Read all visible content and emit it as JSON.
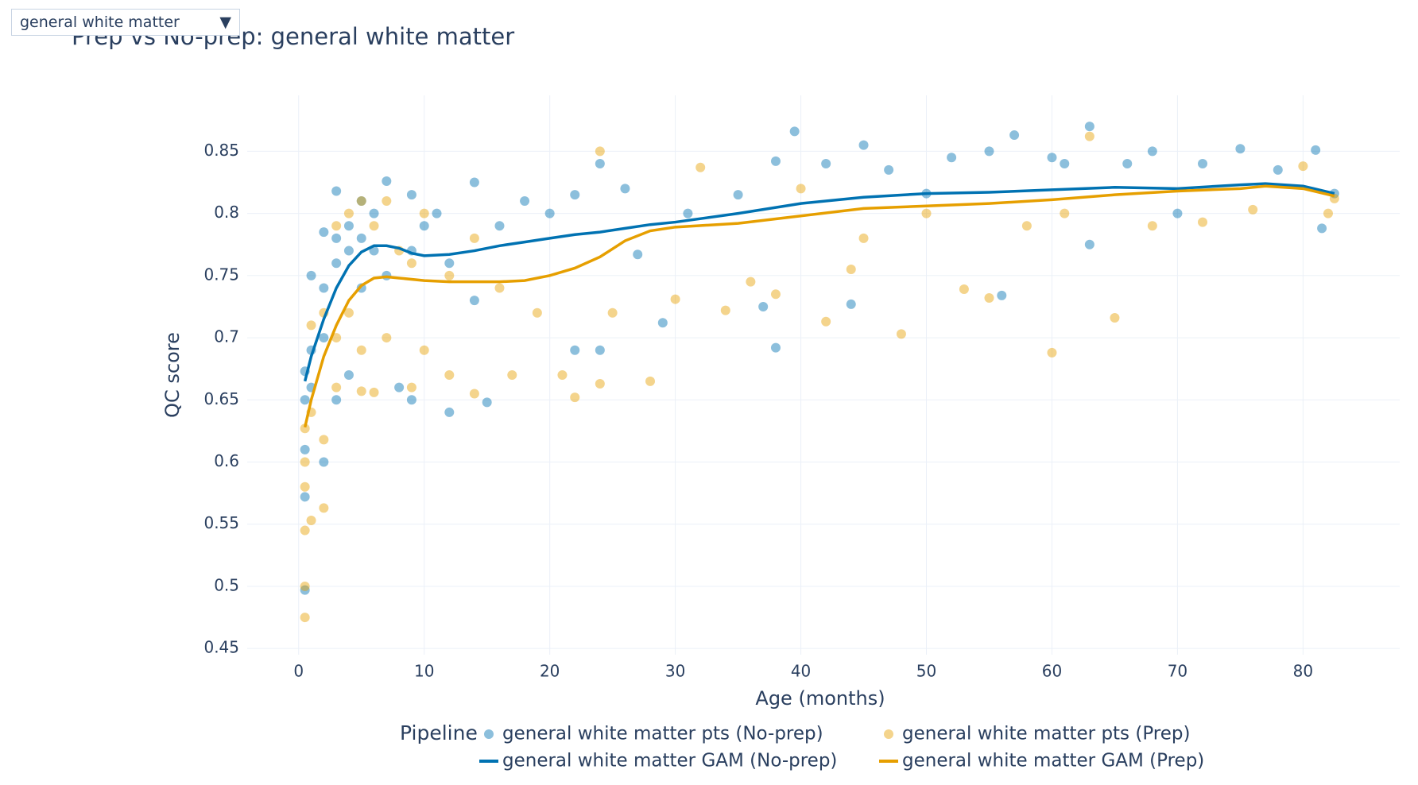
{
  "dropdown": {
    "selected": "general white matter",
    "arrow": "▼"
  },
  "chart_data": {
    "type": "scatter",
    "title": "Prep vs No-prep: general white matter",
    "x_label": "Age (months)",
    "y_label": "QC score",
    "xlim": [
      -4.1,
      87.7
    ],
    "ylim": [
      0.445,
      0.895
    ],
    "xticks": [
      0,
      10,
      20,
      30,
      40,
      50,
      60,
      70,
      80
    ],
    "yticks": [
      0.45,
      0.5,
      0.55,
      0.6,
      0.65,
      0.7,
      0.75,
      0.8,
      0.85
    ],
    "grid": true,
    "legend_title": "Pipeline",
    "series": [
      {
        "name": "general white matter pts (No-prep)",
        "color": "#0072b2",
        "mode": "markers",
        "x": [
          0.5,
          0.5,
          0.5,
          0.5,
          0.5,
          1,
          1,
          1,
          2,
          2,
          2,
          2,
          3,
          3,
          3,
          3,
          4,
          4,
          4,
          5,
          5,
          5,
          6,
          6,
          7,
          7,
          8,
          9,
          9,
          9,
          10,
          11,
          12,
          12,
          14,
          14,
          15,
          16,
          18,
          20,
          22,
          22,
          24,
          24,
          26,
          27,
          29,
          31,
          35,
          37,
          38,
          38,
          39.5,
          42,
          44,
          45,
          47,
          50,
          52,
          55,
          56,
          57,
          60,
          61,
          63,
          63,
          66,
          68,
          70,
          72,
          75,
          78,
          81,
          81.5,
          82.5
        ],
        "values": [
          0.673,
          0.65,
          0.61,
          0.572,
          0.497,
          0.69,
          0.66,
          0.75,
          0.785,
          0.74,
          0.7,
          0.6,
          0.818,
          0.78,
          0.76,
          0.65,
          0.79,
          0.77,
          0.67,
          0.81,
          0.78,
          0.74,
          0.8,
          0.77,
          0.826,
          0.75,
          0.66,
          0.815,
          0.77,
          0.65,
          0.79,
          0.8,
          0.76,
          0.64,
          0.825,
          0.73,
          0.648,
          0.79,
          0.81,
          0.8,
          0.815,
          0.69,
          0.84,
          0.69,
          0.82,
          0.767,
          0.712,
          0.8,
          0.815,
          0.725,
          0.692,
          0.842,
          0.866,
          0.84,
          0.727,
          0.855,
          0.835,
          0.816,
          0.845,
          0.85,
          0.734,
          0.863,
          0.845,
          0.84,
          0.87,
          0.775,
          0.84,
          0.85,
          0.8,
          0.84,
          0.852,
          0.835,
          0.851,
          0.788,
          0.816
        ]
      },
      {
        "name": "general white matter pts (Prep)",
        "color": "#e69f00",
        "mode": "markers",
        "x": [
          0.5,
          0.5,
          0.5,
          0.5,
          0.5,
          0.5,
          1,
          1,
          1,
          2,
          2,
          2,
          3,
          3,
          3,
          4,
          4,
          5,
          5,
          5,
          6,
          6,
          7,
          7,
          8,
          9,
          9,
          10,
          10,
          12,
          12,
          14,
          14,
          16,
          17,
          19,
          21,
          22,
          24,
          24,
          25,
          28,
          30,
          32,
          34,
          36,
          38,
          40,
          42,
          44,
          45,
          48,
          50,
          53,
          55,
          58,
          60,
          61,
          63,
          65,
          68,
          72,
          76,
          80,
          82,
          82.5
        ],
        "values": [
          0.627,
          0.6,
          0.58,
          0.545,
          0.5,
          0.475,
          0.71,
          0.64,
          0.553,
          0.72,
          0.618,
          0.563,
          0.79,
          0.7,
          0.66,
          0.8,
          0.72,
          0.81,
          0.69,
          0.657,
          0.79,
          0.656,
          0.81,
          0.7,
          0.77,
          0.76,
          0.66,
          0.8,
          0.69,
          0.75,
          0.67,
          0.78,
          0.655,
          0.74,
          0.67,
          0.72,
          0.67,
          0.652,
          0.85,
          0.663,
          0.72,
          0.665,
          0.731,
          0.837,
          0.722,
          0.745,
          0.735,
          0.82,
          0.713,
          0.755,
          0.78,
          0.703,
          0.8,
          0.739,
          0.732,
          0.79,
          0.688,
          0.8,
          0.862,
          0.716,
          0.79,
          0.793,
          0.803,
          0.838,
          0.8,
          0.812
        ]
      },
      {
        "name": "general white matter GAM (No-prep)",
        "color": "#0072b2",
        "mode": "lines",
        "x": [
          0.5,
          1,
          2,
          3,
          4,
          5,
          6,
          7,
          8,
          9,
          10,
          12,
          14,
          16,
          18,
          20,
          22,
          24,
          26,
          28,
          30,
          35,
          40,
          45,
          50,
          55,
          60,
          65,
          70,
          75,
          77,
          80,
          82.5
        ],
        "values": [
          0.665,
          0.685,
          0.715,
          0.74,
          0.758,
          0.769,
          0.774,
          0.774,
          0.772,
          0.768,
          0.766,
          0.767,
          0.77,
          0.774,
          0.777,
          0.78,
          0.783,
          0.785,
          0.788,
          0.791,
          0.793,
          0.8,
          0.808,
          0.813,
          0.816,
          0.817,
          0.819,
          0.821,
          0.82,
          0.823,
          0.824,
          0.822,
          0.816
        ]
      },
      {
        "name": "general white matter GAM (Prep)",
        "color": "#e69f00",
        "mode": "lines",
        "x": [
          0.5,
          1,
          2,
          3,
          4,
          5,
          6,
          7,
          8,
          10,
          12,
          14,
          16,
          18,
          20,
          22,
          24,
          26,
          28,
          30,
          35,
          40,
          45,
          50,
          55,
          60,
          65,
          70,
          75,
          77,
          80,
          82.5
        ],
        "values": [
          0.628,
          0.65,
          0.685,
          0.71,
          0.73,
          0.742,
          0.748,
          0.749,
          0.748,
          0.746,
          0.745,
          0.745,
          0.745,
          0.746,
          0.75,
          0.756,
          0.765,
          0.778,
          0.786,
          0.789,
          0.792,
          0.798,
          0.804,
          0.806,
          0.808,
          0.811,
          0.815,
          0.818,
          0.82,
          0.822,
          0.82,
          0.814
        ]
      }
    ]
  }
}
